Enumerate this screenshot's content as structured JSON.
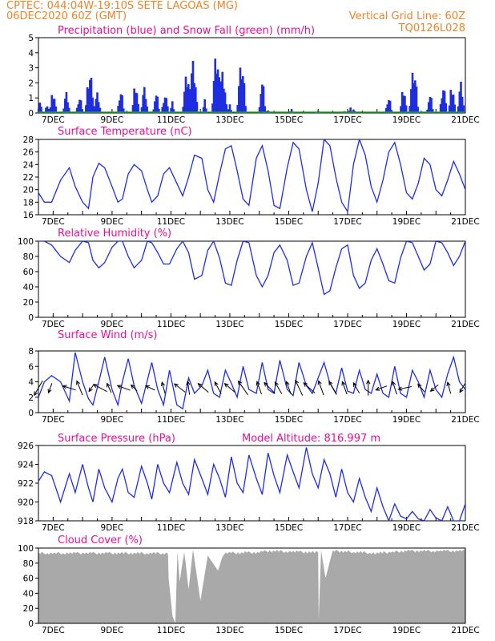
{
  "header": {
    "left1": "CPTEC:   044:04W-19:10S   SETE LAGOAS (MG)",
    "left2": "06DEC2020 60Z (GMT)",
    "right1": "Vertical Grid Line: 60Z",
    "right2": "TQ0126L028"
  },
  "colors": {
    "header": "#e8862a",
    "title": "#e0109a",
    "series": "#1f2de0",
    "snow": "#19b019",
    "cloud": "#a9a9a9"
  },
  "x_labels": [
    "7DEC",
    "9DEC",
    "11DEC",
    "13DEC",
    "15DEC",
    "17DEC",
    "19DEC",
    "21DEC"
  ],
  "chart_data": [
    {
      "type": "bar",
      "title": "Precipitation (blue) and Snow Fall (green) (mm/h)",
      "ylim": [
        0,
        5
      ],
      "yticks": [
        "0",
        "1",
        "2",
        "3",
        "4",
        "5"
      ],
      "days": [
        6.5,
        21.0
      ],
      "series": [
        {
          "name": "Precipitation (blue)",
          "points": [
            [
              6.55,
              1.0
            ],
            [
              6.8,
              0.8
            ],
            [
              7.0,
              1.7
            ],
            [
              7.45,
              1.6
            ],
            [
              7.9,
              1.2
            ],
            [
              8.25,
              3.0
            ],
            [
              8.5,
              1.5
            ],
            [
              9.3,
              1.6
            ],
            [
              9.8,
              2.1
            ],
            [
              10.1,
              1.8
            ],
            [
              10.5,
              1.4
            ],
            [
              10.8,
              1.5
            ],
            [
              11.05,
              0.9
            ],
            [
              11.55,
              3.1
            ],
            [
              11.75,
              4.0
            ],
            [
              12.15,
              1.0
            ],
            [
              12.55,
              4.4
            ],
            [
              12.75,
              3.0
            ],
            [
              13.0,
              0.6
            ],
            [
              13.4,
              3.5
            ],
            [
              14.1,
              2.3
            ],
            [
              14.3,
              0.3
            ],
            [
              15.1,
              0.3
            ],
            [
              16.0,
              0.2
            ],
            [
              16.9,
              0.2
            ],
            [
              17.1,
              0.4
            ],
            [
              17.2,
              0.3
            ],
            [
              18.4,
              1.1
            ],
            [
              18.9,
              1.8
            ],
            [
              19.25,
              3.1
            ],
            [
              19.8,
              1.3
            ],
            [
              20.25,
              2.2
            ],
            [
              20.55,
              2.2
            ],
            [
              20.85,
              2.4
            ]
          ]
        },
        {
          "name": "Snow Fall (green)",
          "points": []
        }
      ]
    },
    {
      "type": "line",
      "title": "Surface Temperature (nC)",
      "ylim": [
        16,
        28
      ],
      "yticks": [
        "16",
        "18",
        "20",
        "22",
        "24",
        "26",
        "28"
      ],
      "series": [
        {
          "name": "Surface Temperature",
          "x": [
            6.5,
            6.7,
            6.95,
            7.25,
            7.55,
            7.75,
            8.0,
            8.2,
            8.35,
            8.55,
            8.75,
            9.0,
            9.2,
            9.35,
            9.55,
            9.75,
            10.0,
            10.2,
            10.35,
            10.55,
            10.75,
            10.95,
            11.2,
            11.4,
            11.6,
            11.8,
            12.05,
            12.25,
            12.45,
            12.65,
            12.85,
            13.05,
            13.25,
            13.45,
            13.65,
            13.9,
            14.1,
            14.3,
            14.5,
            14.7,
            14.95,
            15.15,
            15.35,
            15.6,
            15.8,
            16.0,
            16.2,
            16.4,
            16.6,
            16.8,
            17.0,
            17.2,
            17.4,
            17.6,
            17.8,
            18.0,
            18.2,
            18.4,
            18.6,
            18.8,
            19.0,
            19.2,
            19.4,
            19.6,
            19.8,
            20.0,
            20.2,
            20.4,
            20.6,
            20.8,
            21.0
          ],
          "y": [
            19.5,
            18.0,
            18.0,
            21.5,
            23.5,
            20.5,
            18.0,
            17.0,
            22.0,
            24.2,
            23.5,
            20.5,
            18.0,
            18.5,
            22.5,
            24.0,
            23.0,
            20.0,
            18.0,
            19.0,
            22.5,
            23.5,
            21.0,
            19.0,
            22.0,
            25.5,
            25.0,
            20.0,
            18.0,
            22.5,
            26.5,
            27.0,
            23.0,
            18.5,
            17.5,
            25.0,
            27.0,
            23.0,
            17.5,
            17.0,
            23.5,
            27.5,
            26.5,
            20.0,
            16.5,
            21.0,
            28.0,
            27.0,
            22.0,
            18.0,
            16.5,
            24.0,
            28.0,
            25.5,
            20.5,
            18.0,
            21.5,
            26.0,
            27.5,
            24.0,
            19.5,
            18.5,
            21.0,
            25.0,
            24.0,
            20.0,
            19.0,
            21.5,
            24.5,
            22.5,
            20.0
          ]
        }
      ]
    },
    {
      "type": "line",
      "title": "Relative Humidity (%)",
      "ylim": [
        0,
        100
      ],
      "yticks": [
        "0",
        "20",
        "40",
        "60",
        "80",
        "100"
      ],
      "series": [
        {
          "name": "Relative Humidity",
          "x": [
            6.5,
            6.7,
            6.95,
            7.25,
            7.55,
            7.75,
            8.0,
            8.2,
            8.35,
            8.55,
            8.75,
            9.0,
            9.2,
            9.35,
            9.55,
            9.75,
            10.0,
            10.2,
            10.35,
            10.55,
            10.75,
            10.95,
            11.2,
            11.4,
            11.6,
            11.8,
            12.05,
            12.25,
            12.45,
            12.65,
            12.85,
            13.05,
            13.25,
            13.45,
            13.65,
            13.9,
            14.1,
            14.3,
            14.5,
            14.7,
            14.95,
            15.15,
            15.35,
            15.6,
            15.8,
            16.0,
            16.2,
            16.4,
            16.6,
            16.8,
            17.0,
            17.2,
            17.4,
            17.6,
            17.8,
            18.0,
            18.2,
            18.4,
            18.6,
            18.8,
            19.0,
            19.2,
            19.4,
            19.6,
            19.8,
            20.0,
            20.2,
            20.4,
            20.6,
            20.8,
            21.0
          ],
          "y": [
            100,
            100,
            95,
            80,
            72,
            88,
            100,
            98,
            75,
            65,
            72,
            92,
            100,
            100,
            80,
            65,
            75,
            100,
            98,
            85,
            70,
            70,
            90,
            100,
            85,
            50,
            55,
            88,
            100,
            78,
            45,
            42,
            75,
            100,
            98,
            55,
            40,
            55,
            85,
            95,
            75,
            42,
            45,
            80,
            98,
            65,
            30,
            35,
            65,
            90,
            95,
            55,
            38,
            45,
            75,
            90,
            70,
            48,
            45,
            78,
            100,
            98,
            80,
            62,
            70,
            100,
            98,
            85,
            68,
            80,
            100
          ]
        }
      ]
    },
    {
      "type": "line",
      "title": "Surface Wind (m/s)",
      "ylim": [
        0,
        8
      ],
      "yticks": [
        "0",
        "2",
        "4",
        "6",
        "8"
      ],
      "series": [
        {
          "name": "Surface Wind",
          "x": [
            6.5,
            6.7,
            6.95,
            7.25,
            7.55,
            7.75,
            8.0,
            8.2,
            8.35,
            8.55,
            8.75,
            9.0,
            9.2,
            9.35,
            9.55,
            9.75,
            10.0,
            10.2,
            10.35,
            10.55,
            10.75,
            10.95,
            11.2,
            11.4,
            11.6,
            11.8,
            12.05,
            12.25,
            12.45,
            12.65,
            12.85,
            13.05,
            13.25,
            13.45,
            13.65,
            13.9,
            14.1,
            14.3,
            14.5,
            14.7,
            14.95,
            15.15,
            15.35,
            15.6,
            15.8,
            16.0,
            16.2,
            16.4,
            16.6,
            16.8,
            17.0,
            17.2,
            17.4,
            17.6,
            17.8,
            18.0,
            18.2,
            18.4,
            18.6,
            18.8,
            19.0,
            19.2,
            19.4,
            19.6,
            19.8,
            20.0,
            20.2,
            20.4,
            20.6,
            20.8,
            21.0
          ],
          "y": [
            2.0,
            4.0,
            4.8,
            4.0,
            1.5,
            7.8,
            4.0,
            1.8,
            1.0,
            4.0,
            7.2,
            3.0,
            1.0,
            4.0,
            7.0,
            3.5,
            1.2,
            4.2,
            6.5,
            3.0,
            1.0,
            5.5,
            1.0,
            0.5,
            4.5,
            2.5,
            3.5,
            5.5,
            2.5,
            2.0,
            5.5,
            3.8,
            2.0,
            6.0,
            3.0,
            2.5,
            6.5,
            3.0,
            2.5,
            6.8,
            3.0,
            2.2,
            6.5,
            3.5,
            2.5,
            4.5,
            6.5,
            3.8,
            2.5,
            5.8,
            2.8,
            2.5,
            5.5,
            3.0,
            2.5,
            5.0,
            2.5,
            2.0,
            6.0,
            2.5,
            2.0,
            5.5,
            4.0,
            2.0,
            5.5,
            3.0,
            2.0,
            5.0,
            7.2,
            4.0,
            3.0
          ]
        }
      ],
      "arrows": [
        [
          6.5,
          30,
          50
        ],
        [
          6.9,
          20,
          30
        ],
        [
          7.55,
          108,
          40
        ],
        [
          7.9,
          158,
          45
        ],
        [
          8.3,
          35,
          25
        ],
        [
          8.6,
          118,
          45
        ],
        [
          8.9,
          155,
          30
        ],
        [
          9.4,
          110,
          40
        ],
        [
          9.75,
          135,
          25
        ],
        [
          10.3,
          115,
          30
        ],
        [
          10.75,
          165,
          35
        ],
        [
          11.3,
          128,
          40
        ],
        [
          11.6,
          172,
          40
        ],
        [
          12.1,
          130,
          40
        ],
        [
          12.6,
          152,
          40
        ],
        [
          13.0,
          130,
          40
        ],
        [
          13.45,
          145,
          50
        ],
        [
          14.0,
          160,
          40
        ],
        [
          14.35,
          135,
          45
        ],
        [
          14.65,
          150,
          40
        ],
        [
          15.0,
          160,
          40
        ],
        [
          15.35,
          155,
          50
        ],
        [
          15.7,
          132,
          45
        ],
        [
          16.1,
          160,
          45
        ],
        [
          16.5,
          150,
          45
        ],
        [
          16.9,
          160,
          40
        ],
        [
          17.3,
          150,
          35
        ],
        [
          17.7,
          180,
          45
        ],
        [
          18.15,
          70,
          35
        ],
        [
          18.6,
          162,
          40
        ],
        [
          18.95,
          78,
          40
        ],
        [
          19.5,
          140,
          30
        ],
        [
          19.95,
          50,
          30
        ],
        [
          20.45,
          165,
          35
        ],
        [
          20.9,
          30,
          30
        ]
      ]
    },
    {
      "type": "line",
      "title": "Surface Pressure (hPa)",
      "subtitle": "Model Altitude: 816.997 m",
      "ylim": [
        918,
        926
      ],
      "yticks": [
        "918",
        "920",
        "922",
        "924",
        "926"
      ],
      "series": [
        {
          "name": "Surface Pressure",
          "x": [
            6.5,
            6.7,
            6.95,
            7.25,
            7.55,
            7.75,
            8.0,
            8.2,
            8.35,
            8.55,
            8.75,
            9.0,
            9.2,
            9.35,
            9.55,
            9.75,
            10.0,
            10.2,
            10.35,
            10.55,
            10.75,
            10.95,
            11.2,
            11.4,
            11.6,
            11.8,
            12.05,
            12.25,
            12.45,
            12.65,
            12.85,
            13.05,
            13.25,
            13.45,
            13.65,
            13.9,
            14.1,
            14.3,
            14.5,
            14.7,
            14.95,
            15.15,
            15.35,
            15.6,
            15.8,
            16.0,
            16.2,
            16.4,
            16.6,
            16.8,
            17.0,
            17.2,
            17.4,
            17.6,
            17.8,
            18.0,
            18.2,
            18.4,
            18.6,
            18.8,
            19.0,
            19.2,
            19.4,
            19.6,
            19.8,
            20.0,
            20.2,
            20.4,
            20.6,
            20.8,
            21.0
          ],
          "y": [
            922.2,
            923.2,
            922.8,
            920.0,
            923.0,
            921.0,
            924.0,
            921.5,
            920.0,
            923.5,
            921.5,
            920.0,
            922.5,
            923.5,
            921.0,
            920.5,
            923.8,
            922.0,
            920.3,
            924.0,
            922.0,
            921.0,
            924.2,
            922.0,
            920.8,
            924.5,
            922.5,
            920.8,
            924.0,
            922.5,
            920.5,
            924.8,
            922.0,
            921.0,
            925.0,
            922.5,
            920.8,
            925.2,
            922.8,
            921.0,
            925.0,
            923.2,
            921.5,
            925.8,
            923.0,
            921.5,
            924.5,
            923.0,
            920.5,
            923.5,
            921.0,
            920.0,
            922.5,
            920.5,
            919.0,
            921.5,
            919.5,
            918.0,
            919.8,
            918.5,
            918.2,
            919.0,
            918.2,
            918.0,
            919.2,
            918.3,
            918.0,
            919.5,
            918.0,
            918.0,
            919.8
          ]
        }
      ]
    },
    {
      "type": "area",
      "title": "Cloud Cover (%)",
      "ylim": [
        0,
        100
      ],
      "yticks": [
        "0",
        "20",
        "40",
        "60",
        "80",
        "100"
      ],
      "series": [
        {
          "name": "Cloud Cover",
          "points": [
            [
              6.5,
              95
            ],
            [
              10.9,
              95
            ],
            [
              10.92,
              60
            ],
            [
              11.05,
              10
            ],
            [
              11.15,
              0
            ],
            [
              11.22,
              95
            ],
            [
              11.3,
              55
            ],
            [
              11.45,
              98
            ],
            [
              11.6,
              45
            ],
            [
              11.75,
              98
            ],
            [
              12.0,
              30
            ],
            [
              12.25,
              90
            ],
            [
              12.6,
              70
            ],
            [
              12.8,
              95
            ],
            [
              14.0,
              96
            ],
            [
              14.3,
              98
            ],
            [
              16.0,
              96
            ],
            [
              16.02,
              5
            ],
            [
              16.1,
              98
            ],
            [
              16.25,
              60
            ],
            [
              16.5,
              98
            ],
            [
              17.5,
              96
            ],
            [
              18.0,
              95
            ],
            [
              19.0,
              98
            ],
            [
              21.0,
              98
            ]
          ]
        }
      ]
    }
  ]
}
